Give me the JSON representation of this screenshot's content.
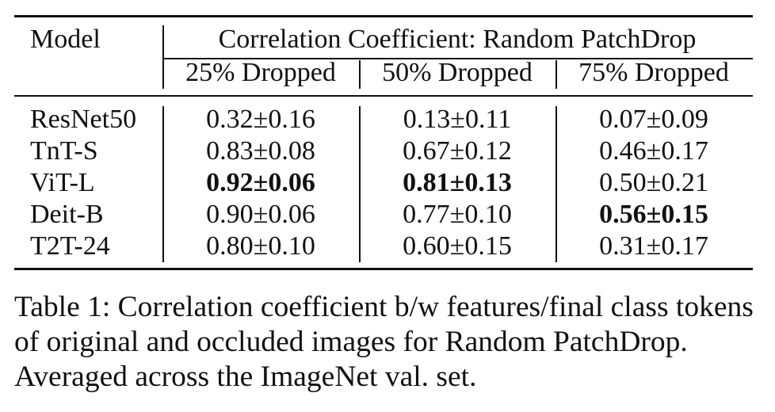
{
  "table": {
    "model_header": "Model",
    "group_header": "Correlation Coefficient: Random PatchDrop",
    "columns": [
      "25% Dropped",
      "50% Dropped",
      "75% Dropped"
    ],
    "rows": [
      {
        "model": "ResNet50",
        "values": [
          "0.32±0.16",
          "0.13±0.11",
          "0.07±0.09"
        ],
        "bold": [
          false,
          false,
          false
        ]
      },
      {
        "model": "TnT-S",
        "values": [
          "0.83±0.08",
          "0.67±0.12",
          "0.46±0.17"
        ],
        "bold": [
          false,
          false,
          false
        ]
      },
      {
        "model": "ViT-L",
        "values": [
          "0.92±0.06",
          "0.81±0.13",
          "0.50±0.21"
        ],
        "bold": [
          true,
          true,
          false
        ]
      },
      {
        "model": "Deit-B",
        "values": [
          "0.90±0.06",
          "0.77±0.10",
          "0.56±0.15"
        ],
        "bold": [
          false,
          false,
          true
        ]
      },
      {
        "model": "T2T-24",
        "values": [
          "0.80±0.10",
          "0.60±0.15",
          "0.31±0.17"
        ],
        "bold": [
          false,
          false,
          false
        ]
      }
    ]
  },
  "caption": "Table 1: Correlation coefficient b/w features/final class tokens of original and occluded images for Random PatchDrop. Averaged across the ImageNet val. set."
}
